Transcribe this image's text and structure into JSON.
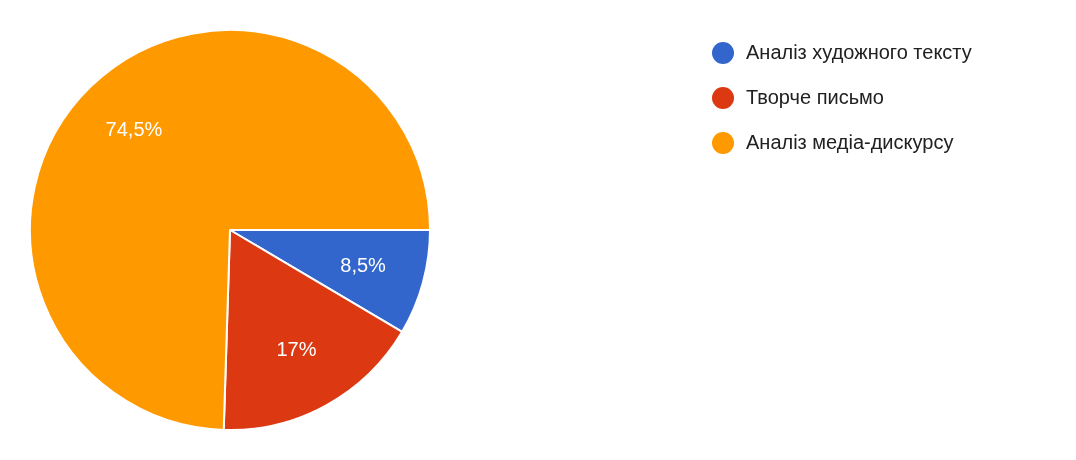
{
  "chart_data": {
    "type": "pie",
    "categories": [
      "Аналіз художного тексту",
      "Творче письмо",
      "Аналіз медіа-дискурсу"
    ],
    "values": [
      8.5,
      17,
      74.5
    ],
    "colors": [
      "#3366cc",
      "#dc3912",
      "#ff9900"
    ],
    "value_labels": [
      "8,5%",
      "17%",
      "74,5%"
    ],
    "legend": "top right"
  }
}
